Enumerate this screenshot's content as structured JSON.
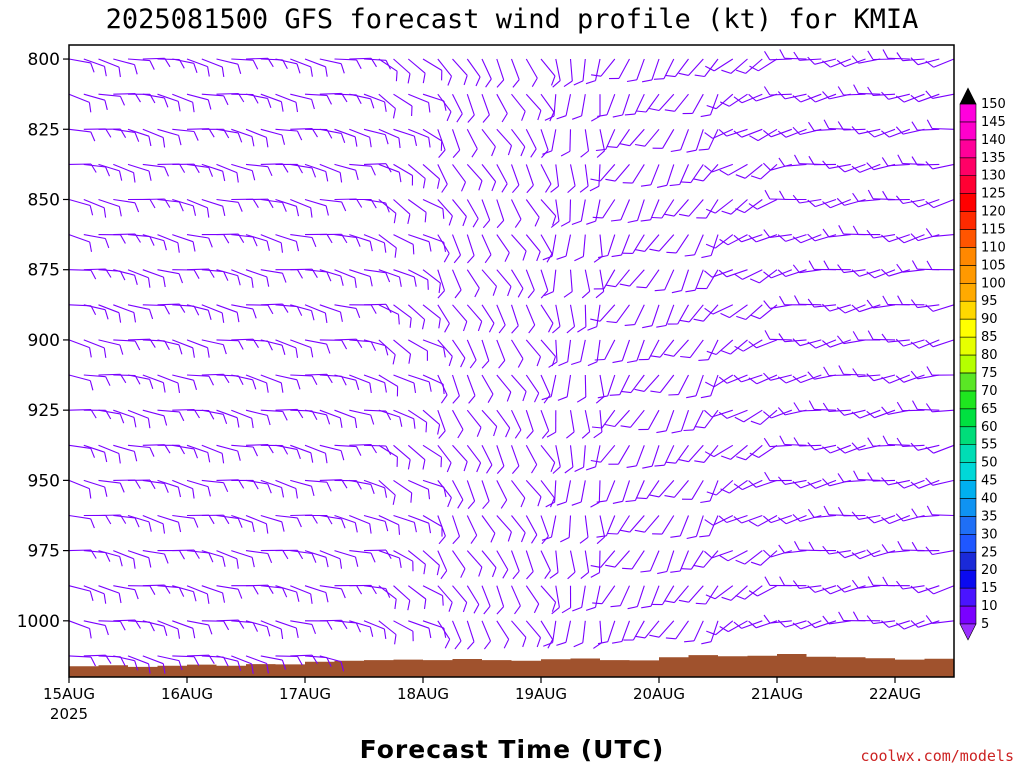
{
  "chart_data": {
    "type": "wind_barb_profile",
    "title": "2025081500 GFS forecast wind profile (kt) for KMIA",
    "xlabel": "Forecast Time (UTC)",
    "credit": "coolwx.com/models",
    "y_axis": {
      "quantity": "pressure (hPa)",
      "ticks": [
        800,
        825,
        850,
        875,
        900,
        925,
        950,
        975,
        1000
      ],
      "range": [
        795,
        1020
      ],
      "inverted": true
    },
    "x_axis": {
      "ticks": [
        "15AUG",
        "16AUG",
        "17AUG",
        "18AUG",
        "19AUG",
        "20AUG",
        "21AUG",
        "22AUG"
      ],
      "year_label": "2025",
      "range_days": [
        0,
        7.5
      ]
    },
    "colorbar": {
      "unit": "kt",
      "levels": [
        5,
        10,
        15,
        20,
        25,
        30,
        35,
        40,
        45,
        50,
        55,
        60,
        65,
        70,
        75,
        80,
        85,
        90,
        95,
        100,
        105,
        110,
        115,
        120,
        125,
        130,
        135,
        140,
        145,
        150
      ],
      "colors": [
        "#7a00ff",
        "#4a14ff",
        "#0a0af0",
        "#1a2ad8",
        "#1f57ff",
        "#1f6ff6",
        "#0f93f2",
        "#00b0f0",
        "#00d8d8",
        "#00ddb5",
        "#00dd7a",
        "#00e040",
        "#1fe61f",
        "#5ae625",
        "#b5ff00",
        "#e6ff00",
        "#ffff00",
        "#ffd800",
        "#ffaa00",
        "#ff9900",
        "#ff8800",
        "#ff5500",
        "#ff2a00",
        "#ff0000",
        "#ff0033",
        "#ff0066",
        "#ff0099",
        "#ff00cc",
        "#ff00dd",
        "#ee00ee"
      ],
      "under_color": "#9b30ff",
      "over_color": "#000000"
    },
    "ground_color": "#a0522d",
    "barb_color": "#7a00ff",
    "pressure_levels": [
      800,
      812.5,
      825,
      837.5,
      850,
      862.5,
      875,
      887.5,
      900,
      912.5,
      925,
      937.5,
      950,
      962.5,
      975,
      987.5,
      1000,
      1012.5
    ],
    "time_step_days": 0.125,
    "wind_regimes": [
      {
        "days": [
          0,
          2.5
        ],
        "direction_deg": 100,
        "speed_kt": 10
      },
      {
        "days": [
          2.5,
          3.0
        ],
        "direction_deg": 120,
        "speed_kt": 10
      },
      {
        "days": [
          3.0,
          4.0
        ],
        "direction_deg": 150,
        "speed_kt": 10
      },
      {
        "days": [
          4.0,
          4.5
        ],
        "direction_deg": 180,
        "speed_kt": 10
      },
      {
        "days": [
          4.5,
          5.5
        ],
        "direction_deg": 210,
        "speed_kt": 10
      },
      {
        "days": [
          5.5,
          6.0
        ],
        "direction_deg": 240,
        "speed_kt": 10
      },
      {
        "days": [
          6.0,
          7.5
        ],
        "direction_deg": 260,
        "speed_kt": 10
      }
    ],
    "ground_surface_hpa": [
      {
        "day": 0.0,
        "p": 1016.2
      },
      {
        "day": 0.25,
        "p": 1015.8
      },
      {
        "day": 0.5,
        "p": 1016.4
      },
      {
        "day": 0.75,
        "p": 1016.0
      },
      {
        "day": 1.0,
        "p": 1015.6
      },
      {
        "day": 1.25,
        "p": 1016.0
      },
      {
        "day": 1.5,
        "p": 1015.4
      },
      {
        "day": 1.75,
        "p": 1015.5
      },
      {
        "day": 2.0,
        "p": 1014.6
      },
      {
        "day": 2.25,
        "p": 1014.2
      },
      {
        "day": 2.5,
        "p": 1014.0
      },
      {
        "day": 2.75,
        "p": 1013.8
      },
      {
        "day": 3.0,
        "p": 1014.0
      },
      {
        "day": 3.25,
        "p": 1013.6
      },
      {
        "day": 3.5,
        "p": 1014.0
      },
      {
        "day": 3.75,
        "p": 1014.2
      },
      {
        "day": 4.0,
        "p": 1013.7
      },
      {
        "day": 4.25,
        "p": 1013.4
      },
      {
        "day": 4.5,
        "p": 1014.0
      },
      {
        "day": 4.75,
        "p": 1014.1
      },
      {
        "day": 5.0,
        "p": 1013.0
      },
      {
        "day": 5.25,
        "p": 1012.2
      },
      {
        "day": 5.5,
        "p": 1012.6
      },
      {
        "day": 5.75,
        "p": 1012.4
      },
      {
        "day": 6.0,
        "p": 1011.8
      },
      {
        "day": 6.25,
        "p": 1012.8
      },
      {
        "day": 6.5,
        "p": 1013.0
      },
      {
        "day": 6.75,
        "p": 1013.3
      },
      {
        "day": 7.0,
        "p": 1013.8
      },
      {
        "day": 7.25,
        "p": 1013.5
      },
      {
        "day": 7.5,
        "p": 1014.0
      }
    ]
  }
}
